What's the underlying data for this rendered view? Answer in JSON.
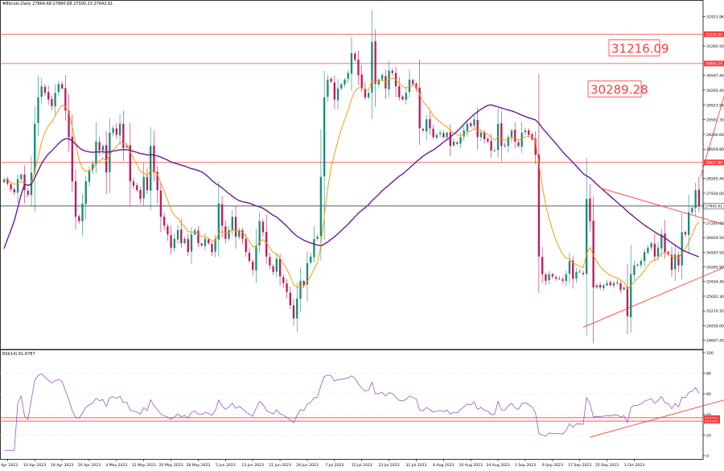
{
  "header": {
    "symbol_line": "#Bitcoin,Daily  27864.68 27880.68 27300.23 27642.61",
    "rsi_title": "RSI(14) 61.6787"
  },
  "colors": {
    "up": "#1a8c78",
    "down": "#c2185b",
    "ema_fast": "#f39c12",
    "ma_slow": "#6a1b9a",
    "level": "#ff3b3b",
    "rsi": "#9b59b6",
    "grid": "#d9d9d9"
  },
  "chart_data": [
    {
      "type": "candlestick",
      "title": "#Bitcoin,Daily",
      "ylim": [
        24400,
        32300
      ],
      "y_ticks": [
        "31923.96",
        "31260.50",
        "30597.40",
        "30265.40",
        "29923.96",
        "29592.35",
        "29260.60",
        "28928.80",
        "28265.40",
        "27934.00",
        "27260.65",
        "26929.50",
        "26597.50",
        "26265.90",
        "25934.40",
        "25602.30",
        "25270.35",
        "24939.00",
        "24607.45"
      ],
      "x_ticks": [
        "2 Apr 2023",
        "10 Apr 2023",
        "18 Apr 2023",
        "26 Apr 2023",
        "4 May 2023",
        "12 May 2023",
        "20 May 2023",
        "28 May 2023",
        "5 Jun 2023",
        "13 Jun 2023",
        "21 Jun 2023",
        "29 Jun 2023",
        "7 Jul 2023",
        "15 Jul 2023",
        "23 Jul 2023",
        "31 Jul 2023",
        "8 Aug 2023",
        "16 Aug 2023",
        "24 Aug 2023",
        "1 Sep 2023",
        "9 Sep 2023",
        "17 Sep 2023",
        "25 Sep 2023",
        "3 Oct 2023"
      ],
      "price_levels": [
        {
          "value": 31526.9,
          "label": "31526.90"
        },
        {
          "value": 30864.24,
          "label": "30864.24"
        },
        {
          "value": 28627.86,
          "label": "28627.86"
        }
      ],
      "current_price": {
        "value": 27642.61,
        "label": "27642.61"
      },
      "targets": [
        {
          "value": 31216.09,
          "label": "31216.09"
        },
        {
          "value": 30289.28,
          "label": "30289.28"
        }
      ],
      "series": [
        {
          "name": "Price",
          "kind": "candles"
        },
        {
          "kind": "ema",
          "period": 9
        },
        {
          "kind": "sma",
          "period": 50
        }
      ],
      "close_path": [
        28240,
        28150,
        28020,
        27950,
        28250,
        28350,
        28000,
        27900,
        28400,
        29500,
        30100,
        30350,
        30200,
        30050,
        29900,
        30200,
        30400,
        30300,
        29800,
        29200,
        28200,
        27400,
        27300,
        27700,
        28200,
        28450,
        28600,
        29100,
        28900,
        29000,
        28400,
        29300,
        29400,
        29250,
        29500,
        28950,
        29000,
        28200,
        28100,
        28000,
        27800,
        28300,
        28000,
        29000,
        28400,
        28000,
        27400,
        27200,
        27000,
        26700,
        26900,
        27100,
        26800,
        26900,
        26600,
        27000,
        27100,
        26800,
        26750,
        26900,
        26800,
        26600,
        26900,
        27700,
        27200,
        26900,
        27100,
        27400,
        26950,
        27100,
        26900,
        26600,
        26400,
        26200,
        26750,
        27300,
        27050,
        26500,
        26300,
        26150,
        26450,
        26050,
        25900,
        25700,
        25400,
        25100,
        25550,
        25950,
        25850,
        26350,
        26500,
        26900,
        26950,
        28300,
        30100,
        30500,
        30450,
        30050,
        30300,
        30400,
        30500,
        30650,
        31100,
        30950,
        30600,
        30300,
        30100,
        30200,
        31350,
        30400,
        30500,
        30600,
        30300,
        30700,
        30650,
        30350,
        30100,
        30050,
        30200,
        30500,
        30400,
        30300,
        29400,
        29350,
        29600,
        29400,
        29200,
        29250,
        29300,
        29200,
        29300,
        29000,
        29100,
        29050,
        29200,
        29350,
        29500,
        29450,
        29600,
        29200,
        29300,
        29150,
        29100,
        28900,
        28900,
        29500,
        29000,
        29000,
        29200,
        29350,
        29100,
        29000,
        29300,
        29350,
        29250,
        29150,
        28800,
        26500,
        26100,
        25950,
        26100,
        26050,
        26000,
        26000,
        25950,
        26100,
        26400,
        26000,
        26150,
        26150,
        26100,
        27800,
        27300,
        25800,
        25850,
        25800,
        25850,
        25900,
        25850,
        25900,
        25900,
        25750,
        25800,
        25150,
        26100,
        26300,
        26300,
        26400,
        26600,
        26700,
        26800,
        26500,
        26700,
        27000,
        26600,
        26550,
        26200,
        26550,
        26300,
        27050,
        27000,
        27500,
        27600,
        28000,
        27650
      ]
    },
    {
      "type": "line",
      "title": "RSI(14) 61.6787",
      "ylim": [
        0,
        100
      ],
      "y_ticks": [
        "100",
        "80",
        "60",
        "40",
        "20",
        "0"
      ],
      "levels": [
        {
          "value": 36.873,
          "label": "36.8730"
        },
        {
          "value": 33.537,
          "label": "33.5370"
        }
      ],
      "current": 61.6787,
      "series": [
        {
          "kind": "rsi",
          "period": 14
        }
      ]
    }
  ]
}
